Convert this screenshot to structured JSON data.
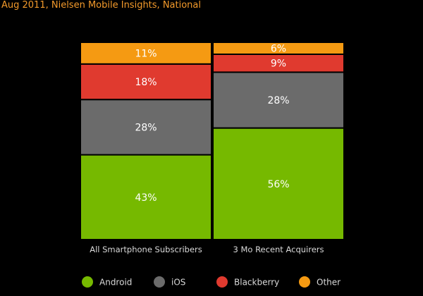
{
  "subtitle": "Aug 2011, Nielsen Mobile Insights, National",
  "chart_data": {
    "type": "bar",
    "stacked": true,
    "normalized": true,
    "categories": [
      "All Smartphone Subscribers",
      "3 Mo Recent Acquirers"
    ],
    "series": [
      {
        "name": "Android",
        "values": [
          43,
          56
        ],
        "color": "#76b900"
      },
      {
        "name": "iOS",
        "values": [
          28,
          28
        ],
        "color": "#6b6b6b"
      },
      {
        "name": "Blackberry",
        "values": [
          18,
          9
        ],
        "color": "#e03a2f"
      },
      {
        "name": "Other",
        "values": [
          11,
          6
        ],
        "color": "#f59a12"
      }
    ],
    "value_suffix": "%",
    "legend_position": "bottom",
    "grid": false
  }
}
